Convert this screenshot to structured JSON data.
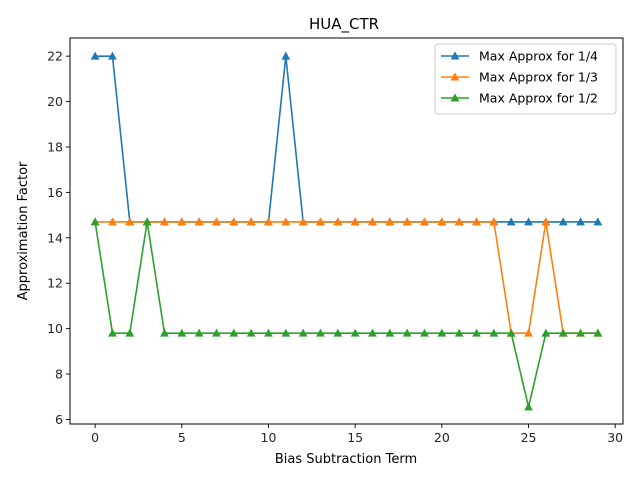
{
  "chart_data": {
    "type": "line",
    "title": "HUA_CTR",
    "xlabel": "Bias Subtraction Term",
    "ylabel": "Approximation Factor",
    "xlim": [
      -1.45,
      30.45
    ],
    "ylim": [
      5.8,
      22.8
    ],
    "x_ticks": [
      0,
      5,
      10,
      15,
      20,
      25,
      30
    ],
    "y_ticks": [
      6,
      8,
      10,
      12,
      14,
      16,
      18,
      20,
      22
    ],
    "legend_position": "top-right",
    "grid": false,
    "marker": "triangle-up",
    "x": [
      0,
      1,
      2,
      3,
      4,
      5,
      6,
      7,
      8,
      9,
      10,
      11,
      12,
      13,
      14,
      15,
      16,
      17,
      18,
      19,
      20,
      21,
      22,
      23,
      24,
      25,
      26,
      27,
      28,
      29
    ],
    "series": [
      {
        "name": "Max Approx for 1/4",
        "color": "#1f77b4",
        "values": [
          22.0,
          22.0,
          14.7,
          14.7,
          14.7,
          14.7,
          14.7,
          14.7,
          14.7,
          14.7,
          14.7,
          22.0,
          14.7,
          14.7,
          14.7,
          14.7,
          14.7,
          14.7,
          14.7,
          14.7,
          14.7,
          14.7,
          14.7,
          14.7,
          14.7,
          14.7,
          14.7,
          14.7,
          14.7,
          14.7
        ]
      },
      {
        "name": "Max Approx for 1/3",
        "color": "#ff7f0e",
        "values": [
          14.7,
          14.7,
          14.7,
          14.7,
          14.7,
          14.7,
          14.7,
          14.7,
          14.7,
          14.7,
          14.7,
          14.7,
          14.7,
          14.7,
          14.7,
          14.7,
          14.7,
          14.7,
          14.7,
          14.7,
          14.7,
          14.7,
          14.7,
          14.7,
          9.8,
          9.8,
          14.7,
          9.8,
          9.8,
          9.8
        ]
      },
      {
        "name": "Max Approx for 1/2",
        "color": "#2ca02c",
        "values": [
          14.7,
          9.8,
          9.8,
          14.7,
          9.8,
          9.8,
          9.8,
          9.8,
          9.8,
          9.8,
          9.8,
          9.8,
          9.8,
          9.8,
          9.8,
          9.8,
          9.8,
          9.8,
          9.8,
          9.8,
          9.8,
          9.8,
          9.8,
          9.8,
          9.8,
          6.55,
          9.8,
          9.8,
          9.8,
          9.8
        ]
      }
    ]
  }
}
